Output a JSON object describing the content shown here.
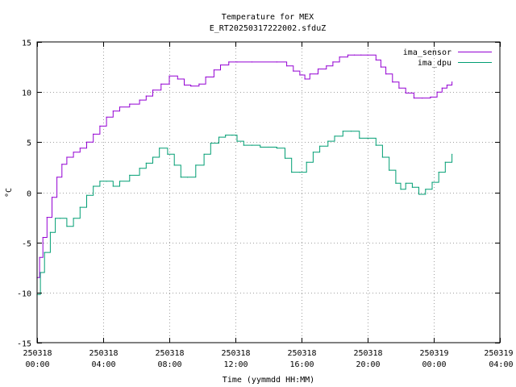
{
  "chart_data": {
    "type": "line",
    "title": "Temperature for MEX",
    "subtitle": "E_RT20250317222002.sfduZ",
    "xlabel": "Time (yymmdd HH:MM)",
    "ylabel": "°C",
    "xlim": [
      0,
      28
    ],
    "ylim": [
      -15,
      15
    ],
    "xticks": [
      {
        "x": 0,
        "line1": "250318",
        "line2": "00:00"
      },
      {
        "x": 4,
        "line1": "250318",
        "line2": "04:00"
      },
      {
        "x": 8,
        "line1": "250318",
        "line2": "08:00"
      },
      {
        "x": 12,
        "line1": "250318",
        "line2": "12:00"
      },
      {
        "x": 16,
        "line1": "250318",
        "line2": "16:00"
      },
      {
        "x": 20,
        "line1": "250318",
        "line2": "20:00"
      },
      {
        "x": 24,
        "line1": "250319",
        "line2": "00:00"
      },
      {
        "x": 28,
        "line1": "250319",
        "line2": "04:00"
      }
    ],
    "yticks": [
      -15,
      -10,
      -5,
      0,
      5,
      10,
      15
    ],
    "grid": true,
    "legend_position": "top-right",
    "series": [
      {
        "name": "ima_sensor",
        "color": "#9400d3",
        "x": [
          0.0,
          0.15,
          0.35,
          0.6,
          0.9,
          1.2,
          1.5,
          1.8,
          2.2,
          2.6,
          3.0,
          3.4,
          3.8,
          4.2,
          4.6,
          5.0,
          5.6,
          6.2,
          6.6,
          7.0,
          7.5,
          8.0,
          8.5,
          8.9,
          9.3,
          9.8,
          10.2,
          10.7,
          11.1,
          11.6,
          12.1,
          13.0,
          14.5,
          15.1,
          15.5,
          15.9,
          16.2,
          16.5,
          17.0,
          17.5,
          17.9,
          18.3,
          18.8,
          19.2,
          19.6,
          20.0,
          20.5,
          20.8,
          21.1,
          21.5,
          21.9,
          22.3,
          22.8,
          23.3,
          23.8,
          24.2,
          24.5,
          24.8,
          25.1
        ],
        "values": [
          -8.5,
          -6.5,
          -4.5,
          -2.5,
          -0.5,
          1.5,
          2.8,
          3.5,
          4.0,
          4.4,
          5.0,
          5.8,
          6.6,
          7.5,
          8.1,
          8.5,
          8.8,
          9.2,
          9.6,
          10.2,
          10.8,
          11.6,
          11.3,
          10.7,
          10.6,
          10.8,
          11.5,
          12.2,
          12.7,
          13.0,
          13.0,
          13.0,
          13.0,
          12.6,
          12.1,
          11.7,
          11.3,
          11.8,
          12.3,
          12.6,
          13.0,
          13.5,
          13.7,
          13.7,
          13.7,
          13.7,
          13.2,
          12.5,
          11.8,
          11.0,
          10.4,
          9.9,
          9.4,
          9.4,
          9.5,
          10.0,
          10.4,
          10.7,
          11.0
        ]
      },
      {
        "name": "ima_dpu",
        "color": "#009e73",
        "x": [
          0.0,
          0.2,
          0.45,
          0.8,
          1.1,
          1.4,
          1.8,
          2.2,
          2.6,
          3.0,
          3.4,
          3.8,
          4.2,
          4.6,
          5.0,
          5.6,
          6.2,
          6.6,
          7.0,
          7.4,
          7.9,
          8.3,
          8.7,
          9.1,
          9.6,
          10.1,
          10.5,
          11.0,
          11.4,
          11.8,
          12.1,
          12.5,
          13.0,
          13.5,
          14.0,
          14.5,
          15.0,
          15.4,
          15.9,
          16.3,
          16.7,
          17.1,
          17.6,
          18.0,
          18.5,
          19.0,
          19.5,
          20.0,
          20.5,
          20.9,
          21.3,
          21.7,
          22.0,
          22.3,
          22.7,
          23.1,
          23.5,
          23.9,
          24.3,
          24.7,
          25.1
        ],
        "values": [
          -10.2,
          -8.0,
          -6.0,
          -4.0,
          -2.6,
          -2.6,
          -3.4,
          -2.6,
          -1.5,
          -0.3,
          0.6,
          1.1,
          1.1,
          0.6,
          1.1,
          1.7,
          2.4,
          2.9,
          3.5,
          4.4,
          3.8,
          2.7,
          1.5,
          1.5,
          2.7,
          3.8,
          4.9,
          5.5,
          5.7,
          5.7,
          5.1,
          4.7,
          4.7,
          4.5,
          4.5,
          4.4,
          3.4,
          2.0,
          2.0,
          3.0,
          4.0,
          4.6,
          5.1,
          5.6,
          6.1,
          6.1,
          5.4,
          5.4,
          4.7,
          3.5,
          2.2,
          0.9,
          0.3,
          0.9,
          0.5,
          -0.2,
          0.3,
          1.0,
          2.0,
          3.0,
          3.8
        ]
      }
    ]
  }
}
